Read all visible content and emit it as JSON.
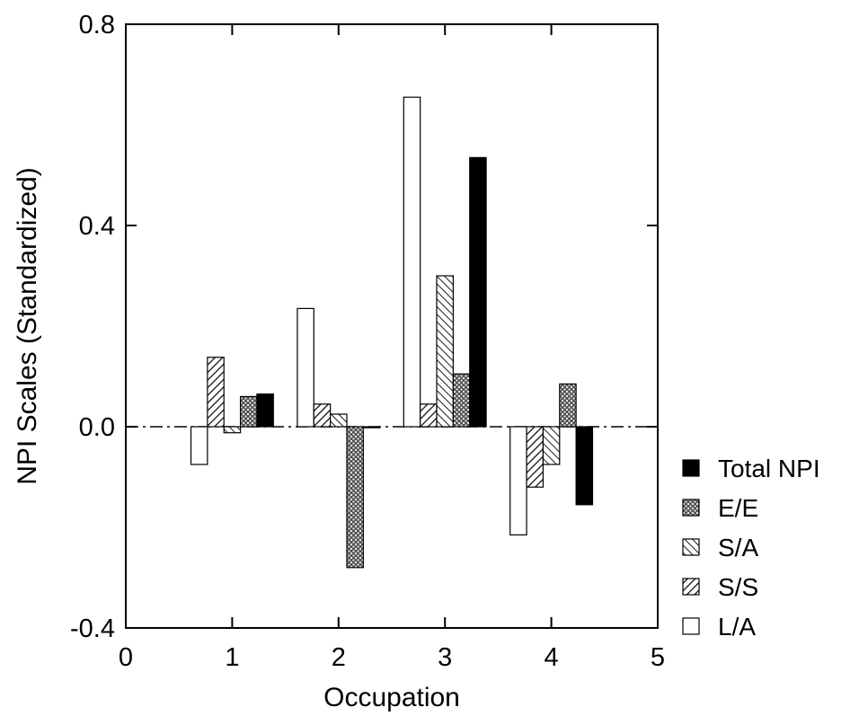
{
  "chart_data": {
    "type": "bar",
    "title": "",
    "xlabel": "Occupation",
    "ylabel": "NPI Scales (Standardized)",
    "xlim": [
      0,
      5
    ],
    "ylim": [
      -0.4,
      0.8
    ],
    "x_ticks": [
      "0",
      "1",
      "2",
      "3",
      "4",
      "5"
    ],
    "y_ticks": [
      "-0.4",
      "0.0",
      "0.4",
      "0.8"
    ],
    "categories": [
      1,
      2,
      3,
      4
    ],
    "series": [
      {
        "name": "L/A",
        "pattern": "open",
        "values": [
          -0.075,
          0.235,
          0.655,
          -0.215
        ]
      },
      {
        "name": "S/S",
        "pattern": "hatch-up",
        "values": [
          0.138,
          0.045,
          0.045,
          -0.12
        ]
      },
      {
        "name": "S/A",
        "pattern": "hatch-down",
        "values": [
          -0.012,
          0.025,
          0.3,
          -0.075
        ]
      },
      {
        "name": "E/E",
        "pattern": "crosshatch",
        "values": [
          0.06,
          -0.28,
          0.105,
          0.085
        ]
      },
      {
        "name": "Total NPI",
        "pattern": "solid",
        "values": [
          0.065,
          -0.002,
          0.535,
          -0.155
        ]
      }
    ],
    "legend_order": [
      "Total NPI",
      "E/E",
      "S/A",
      "S/S",
      "L/A"
    ],
    "legend_position": "right",
    "zero_line": "dashed",
    "grid": false
  }
}
